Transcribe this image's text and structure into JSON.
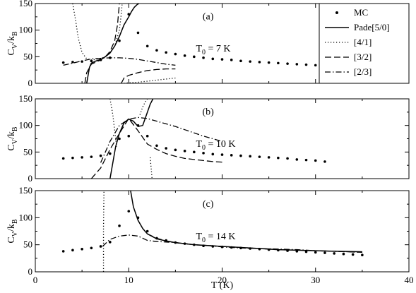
{
  "chart_data": {
    "type": "line",
    "xlabel": "T (K)",
    "ylabel_main": "C",
    "ylabel_sub1": "V",
    "ylabel_mid": "/k",
    "ylabel_sub2": "B",
    "xlim": [
      0,
      40
    ],
    "ylim": [
      0,
      150
    ],
    "x_ticks": [
      0,
      10,
      20,
      30,
      40
    ],
    "y_ticks": [
      0,
      50,
      100,
      150
    ],
    "legend": {
      "placement": "top-right",
      "entries": [
        {
          "label": "MC",
          "style": "dots"
        },
        {
          "label": "Pade[5/0]",
          "style": "solid"
        },
        {
          "label": "[4/1]",
          "style": "dotted"
        },
        {
          "label": "[3/2]",
          "style": "dashed"
        },
        {
          "label": "[2/3]",
          "style": "dashdot"
        }
      ]
    },
    "panels": [
      {
        "id": "a",
        "label": "(a)",
        "temp_main": "T",
        "temp_sub": "0",
        "temp_value": " = 7 K",
        "series": [
          {
            "name": "MC",
            "style": "dots",
            "x": [
              3,
              4,
              5,
              6,
              7,
              8,
              9,
              10,
              11,
              12,
              13,
              14,
              15,
              16,
              17,
              18,
              19,
              20,
              21,
              22,
              23,
              24,
              25,
              26,
              27,
              28,
              29,
              30,
              31
            ],
            "y": [
              39,
              40,
              41,
              42,
              44,
              48,
              80,
              130,
              95,
              70,
              62,
              58,
              55,
              52,
              50,
              48,
              46,
              45,
              44,
              42,
              41,
              40,
              39,
              38,
              37,
              36,
              35,
              34,
              32
            ]
          },
          {
            "name": "Pade[5/0]",
            "style": "solid",
            "x": [
              5.5,
              5.8,
              6,
              6.5,
              7,
              7.5,
              8,
              8.5,
              9,
              9.5,
              10,
              10.3,
              10.6,
              10.9,
              11.1
            ],
            "y": [
              0,
              30,
              38,
              42,
              45,
              50,
              57,
              70,
              88,
              110,
              125,
              135,
              143,
              148,
              150
            ]
          },
          {
            "name": "[4/1]",
            "style": "dotted",
            "x": [
              4,
              4.3,
              4.6,
              5,
              5.5,
              6,
              6.5,
              7,
              7.5,
              8,
              8.5,
              9,
              9.2,
              9.3
            ],
            "y": [
              150,
              120,
              85,
              58,
              46,
              44,
              45,
              47,
              50,
              57,
              70,
              100,
              130,
              150
            ]
          },
          {
            "name": "[4/1] right",
            "style": "dotted",
            "x": [
              9.5,
              10,
              11,
              12,
              13,
              14,
              15
            ],
            "y": [
              0,
              1,
              2,
              4,
              6,
              8,
              10
            ]
          },
          {
            "name": "[3/2]",
            "style": "dashed",
            "x": [
              5.3,
              5.5,
              6,
              6.5,
              7,
              7.5,
              8,
              8.5,
              8.8,
              9.0
            ],
            "y": [
              0,
              20,
              36,
              40,
              44,
              50,
              60,
              80,
              110,
              150
            ]
          },
          {
            "name": "[3/2] right",
            "style": "dashed",
            "x": [
              9.2,
              9.5,
              10,
              11,
              12,
              13,
              14,
              15
            ],
            "y": [
              0,
              10,
              15,
              20,
              24,
              26,
              27,
              27
            ]
          },
          {
            "name": "[2/3]",
            "style": "dashdot",
            "x": [
              3,
              4,
              5,
              6,
              7,
              8,
              9,
              10,
              11,
              12,
              13,
              14,
              15
            ],
            "y": [
              34,
              38,
              42,
              46,
              47,
              48,
              48,
              47,
              45,
              42,
              39,
              36,
              34
            ]
          }
        ]
      },
      {
        "id": "b",
        "label": "(b)",
        "temp_main": "T",
        "temp_sub": "0",
        "temp_value": " = 10 K",
        "series": [
          {
            "name": "MC",
            "style": "dots",
            "x": [
              3,
              4,
              5,
              6,
              7,
              8,
              9,
              10,
              11,
              12,
              13,
              14,
              15,
              16,
              17,
              18,
              19,
              20,
              21,
              22,
              23,
              24,
              25,
              26,
              27,
              28,
              29,
              30,
              31
            ],
            "y": [
              38,
              39,
              40,
              41,
              43,
              47,
              75,
              80,
              100,
              80,
              62,
              57,
              54,
              52,
              50,
              48,
              46,
              45,
              44,
              43,
              42,
              41,
              40,
              39,
              38,
              36,
              35,
              34,
              32
            ]
          },
          {
            "name": "Pade[5/0]",
            "style": "solid",
            "x": [
              8,
              8.3,
              8.6,
              9,
              9.5,
              10,
              10.5,
              11,
              11.5,
              12,
              12.3,
              12.6
            ],
            "y": [
              0,
              30,
              60,
              85,
              105,
              112,
              108,
              98,
              100,
              125,
              140,
              150
            ]
          },
          {
            "name": "[4/1]",
            "style": "dotted",
            "x": [
              8,
              8.3,
              8.5,
              8.7
            ],
            "y": [
              150,
              120,
              90,
              60
            ]
          },
          {
            "name": "[4/1] mid",
            "style": "dotted",
            "x": [
              11.2,
              11.5,
              11.8,
              12,
              12.2
            ],
            "y": [
              120,
              135,
              145,
              150,
              150
            ]
          },
          {
            "name": "[4/1] right",
            "style": "dotted",
            "x": [
              12.3,
              12.4,
              12.5
            ],
            "y": [
              40,
              20,
              0
            ]
          },
          {
            "name": "[3/2]",
            "style": "dashed",
            "x": [
              6,
              7,
              8,
              9,
              10,
              11,
              12,
              13,
              14,
              15,
              16,
              17,
              18,
              19,
              20
            ],
            "y": [
              0,
              20,
              55,
              85,
              113,
              90,
              65,
              55,
              47,
              42,
              38,
              36,
              34,
              32,
              31
            ]
          },
          {
            "name": "[2/3]",
            "style": "dashdot",
            "x": [
              7,
              8,
              9,
              10,
              11,
              12,
              13,
              14,
              15,
              16,
              17,
              18,
              19,
              20
            ],
            "y": [
              30,
              70,
              100,
              112,
              115,
              113,
              108,
              103,
              98,
              92,
              86,
              80,
              75,
              70
            ]
          }
        ]
      },
      {
        "id": "c",
        "label": "(c)",
        "temp_main": "T",
        "temp_sub": "0",
        "temp_value": " = 14 K",
        "series": [
          {
            "name": "MC",
            "style": "dots",
            "x": [
              3,
              4,
              5,
              6,
              7,
              8,
              9,
              10,
              11,
              12,
              13,
              14,
              15,
              16,
              17,
              18,
              19,
              20,
              21,
              22,
              23,
              24,
              25,
              26,
              27,
              28,
              29,
              30,
              31,
              32,
              33,
              34,
              35
            ],
            "y": [
              38,
              40,
              42,
              44,
              47,
              55,
              85,
              112,
              100,
              75,
              62,
              58,
              54,
              52,
              50,
              48,
              47,
              46,
              45,
              44,
              43,
              42,
              41,
              40,
              39,
              38,
              37,
              36,
              35,
              34,
              33,
              32,
              31
            ]
          },
          {
            "name": "Pade[5/0]",
            "style": "solid",
            "x": [
              10.2,
              10.5,
              11,
              11.5,
              12,
              13,
              14,
              15,
              16,
              17,
              18,
              19,
              20,
              22,
              24,
              26,
              28,
              30,
              32,
              35
            ],
            "y": [
              150,
              120,
              95,
              80,
              70,
              61,
              57,
              54,
              52,
              50,
              49,
              48,
              47,
              45,
              43,
              41,
              40,
              39,
              38,
              37
            ]
          },
          {
            "name": "[4/1]",
            "style": "dotted",
            "x": [
              7.3,
              7.3,
              7.35
            ],
            "y": [
              0,
              80,
              150
            ]
          },
          {
            "name": "[3/2]",
            "style": "dashed",
            "x": [
              12,
              13,
              14,
              15,
              16,
              17,
              18,
              19,
              20,
              22,
              24,
              26,
              28,
              30,
              32,
              35
            ],
            "y": [
              70,
              62,
              57,
              54,
              52,
              50,
              49,
              48,
              47,
              45,
              43,
              41,
              40,
              39,
              38,
              36
            ]
          },
          {
            "name": "[2/3]",
            "style": "dashdot",
            "x": [
              7.2,
              7.5,
              8,
              9,
              10,
              11,
              12,
              13,
              14,
              15,
              16,
              17,
              18,
              19,
              20,
              22,
              24,
              26,
              28,
              30,
              32,
              35
            ],
            "y": [
              47,
              52,
              60,
              66,
              68,
              66,
              58,
              56,
              55,
              54,
              52,
              50,
              49,
              48,
              46,
              44,
              43,
              42,
              41,
              39,
              38,
              36
            ]
          }
        ]
      }
    ]
  }
}
